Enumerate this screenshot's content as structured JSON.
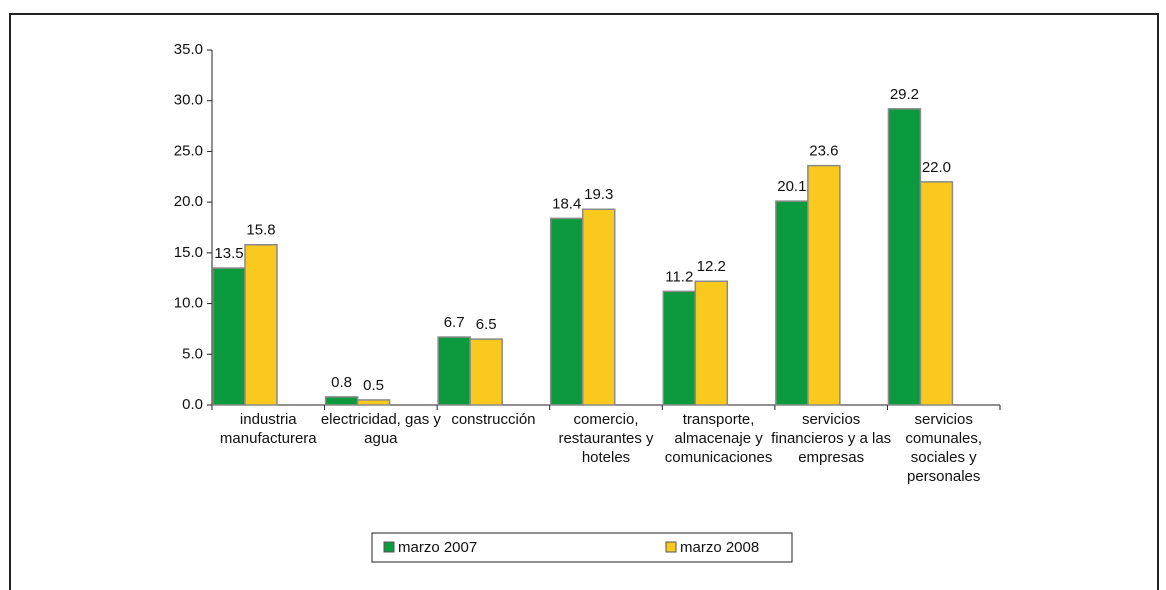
{
  "chart_data": {
    "type": "bar",
    "categories": [
      "industria manufacturera",
      "electricidad, gas y agua",
      "construcción",
      "comercio, restaurantes y hoteles",
      "transporte, almacenaje y comunicaciones",
      "servicios financieros y a las empresas",
      "servicios comunales, sociales y personales"
    ],
    "series": [
      {
        "name": "marzo 2007",
        "color": "#0b9a3d",
        "values": [
          13.5,
          0.8,
          6.7,
          18.4,
          11.2,
          20.1,
          29.2
        ],
        "value_labels": [
          "13.5",
          "0.8",
          "6.7",
          "18.4",
          "11.2",
          "20.1",
          "29.2"
        ]
      },
      {
        "name": "marzo 2008",
        "color": "#f9c91d",
        "values": [
          15.8,
          0.5,
          6.5,
          19.3,
          12.2,
          23.6,
          22.0
        ],
        "value_labels": [
          "15.8",
          "0.5",
          "6.5",
          "19.3",
          "12.2",
          "23.6",
          "22.0"
        ]
      }
    ],
    "ylim": [
      0,
      35
    ],
    "yticks": [
      {
        "value": 0,
        "label": "0.0"
      },
      {
        "value": 5,
        "label": "5.0"
      },
      {
        "value": 10,
        "label": "10.0"
      },
      {
        "value": 15,
        "label": "15.0"
      },
      {
        "value": 20,
        "label": "20.0"
      },
      {
        "value": 25,
        "label": "25.0"
      },
      {
        "value": 30,
        "label": "30.0"
      },
      {
        "value": 35,
        "label": "35.0"
      }
    ],
    "grid": false,
    "legend": "bottom"
  }
}
